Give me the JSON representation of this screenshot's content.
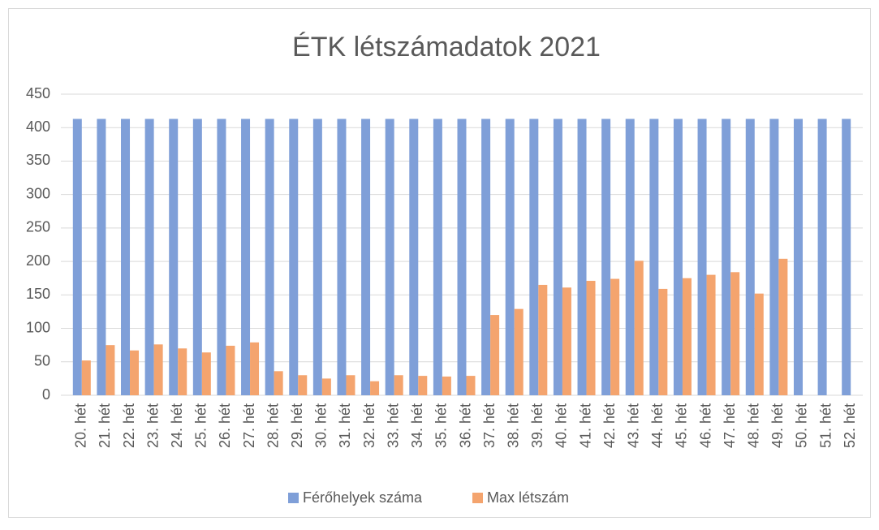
{
  "chart_data": {
    "type": "bar",
    "title": "ÉTK létszámadatok 2021",
    "categories": [
      "20. hét",
      "21. hét",
      "22. hét",
      "23. hét",
      "24. hét",
      "25. hét",
      "26. hét",
      "27. hét",
      "28. hét",
      "29. hét",
      "30. hét",
      "31. hét",
      "32. hét",
      "33. hét",
      "34. hét",
      "35. hét",
      "36. hét",
      "37. hét",
      "38. hét",
      "39. hét",
      "40. hét",
      "41. hét",
      "42. hét",
      "43. hét",
      "44. hét",
      "45. hét",
      "46. hét",
      "47. hét",
      "48. hét",
      "49. hét",
      "50. hét",
      "51. hét",
      "52. hét"
    ],
    "series": [
      {
        "name": "Férőhelyek száma",
        "color": "#7f9fd8",
        "values": [
          413,
          413,
          413,
          413,
          413,
          413,
          413,
          413,
          413,
          413,
          413,
          413,
          413,
          413,
          413,
          413,
          413,
          413,
          413,
          413,
          413,
          413,
          413,
          413,
          413,
          413,
          413,
          413,
          413,
          413,
          413,
          413,
          413
        ]
      },
      {
        "name": "Max létszám",
        "color": "#f4a46e",
        "values": [
          52,
          75,
          67,
          76,
          70,
          64,
          74,
          79,
          36,
          30,
          25,
          30,
          21,
          30,
          29,
          28,
          29,
          120,
          129,
          165,
          161,
          171,
          174,
          201,
          159,
          175,
          180,
          184,
          152,
          204,
          null,
          null,
          null
        ]
      }
    ],
    "ylim": [
      0,
      450
    ],
    "yticks": [
      0,
      50,
      100,
      150,
      200,
      250,
      300,
      350,
      400,
      450
    ],
    "grid": true,
    "legend": "bottom"
  }
}
